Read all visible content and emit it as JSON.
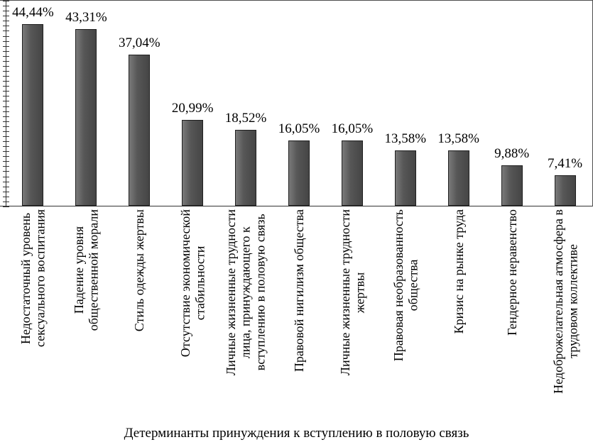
{
  "chart_data": {
    "type": "bar",
    "title": "",
    "xlabel": "Детерминанты принуждения к вступлению в половую связь",
    "ylabel": "",
    "ylim": [
      0,
      50
    ],
    "grid": false,
    "legend_position": "none",
    "y_minor_ticks": 42,
    "bar_color": "#575757",
    "bar_border_color": "#1f1f1f",
    "axis_color": "#333333",
    "categories": [
      "Недостаточный уровень\nсексуального воспитания",
      "Падение уровня\nобщественной морали",
      "Стиль одежды жертвы",
      "Отсутствие экономической\nстабильности",
      "Личные жизненные трудности\nлица, принуждающего к\nвступлению в половую связь",
      "Правовой нигилизм общества",
      "Личные жизненные трудности\nжертвы",
      "Правовая необразованность\nобщества",
      "Кризис на рынке труда",
      "Гендерное неравенство",
      "Недоброжелательная атмосфера в\nтрудовом коллективе"
    ],
    "values": [
      44.44,
      43.31,
      37.04,
      20.99,
      18.52,
      16.05,
      16.05,
      13.58,
      13.58,
      9.88,
      7.41
    ],
    "value_labels": [
      "44,44%",
      "43,31%",
      "37,04%",
      "20,99%",
      "18,52%",
      "16,05%",
      "16,05%",
      "13,58%",
      "13,58%",
      "9,88%",
      "7,41%"
    ]
  }
}
